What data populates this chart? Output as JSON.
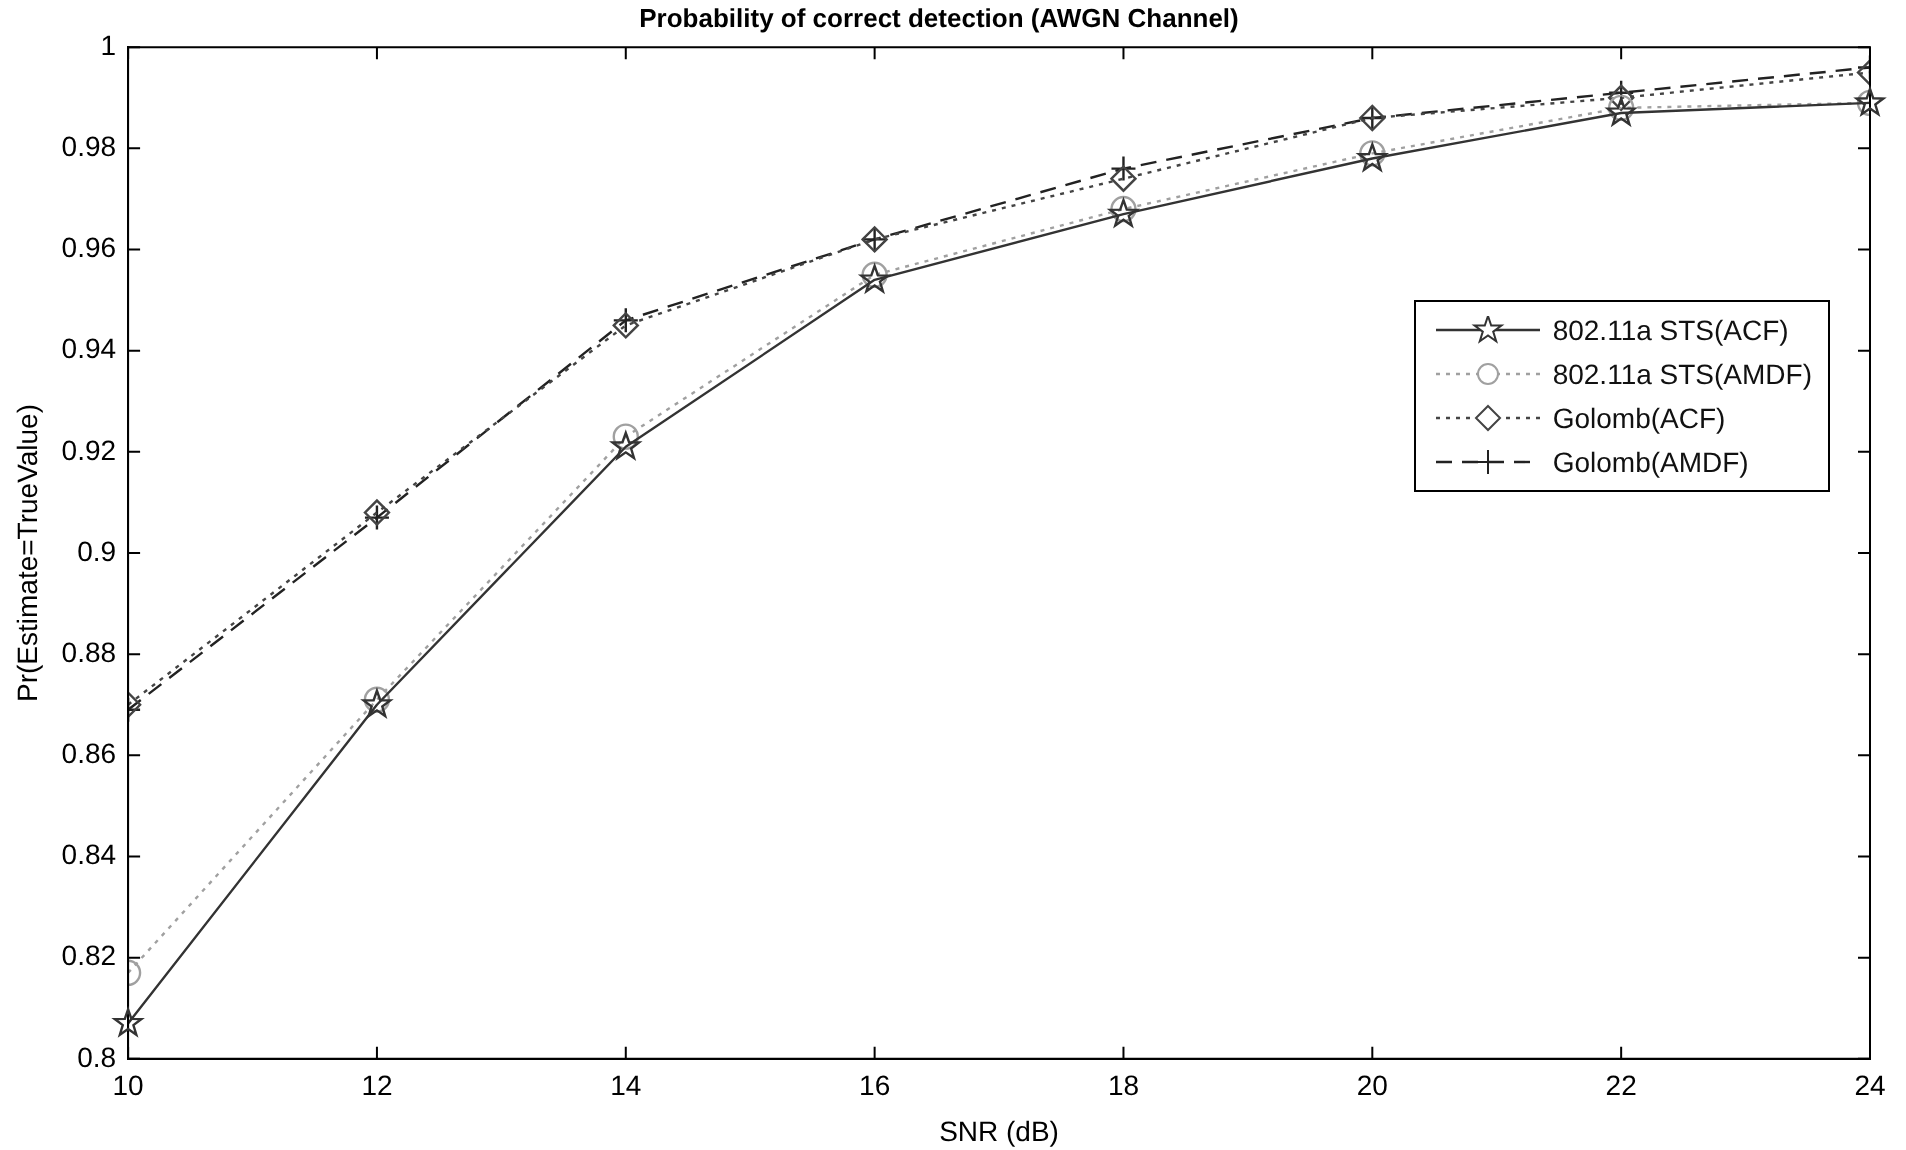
{
  "chart_data": {
    "type": "line",
    "title": "Probability of correct detection (AWGN Channel)",
    "xlabel": "SNR (dB)",
    "ylabel": "Pr(Estimate=TrueValue)",
    "x": [
      10,
      12,
      14,
      16,
      18,
      20,
      22,
      24
    ],
    "xlim": [
      10,
      24
    ],
    "xticks": [
      10,
      12,
      14,
      16,
      18,
      20,
      22,
      24
    ],
    "ylim": [
      0.8,
      1
    ],
    "yticks": [
      0.8,
      0.82,
      0.84,
      0.86,
      0.88,
      0.9,
      0.92,
      0.94,
      0.96,
      0.98,
      1
    ],
    "grid": false,
    "legend": "right",
    "series": [
      {
        "name": "802.11a STS(ACF)",
        "color": "#333333",
        "marker": "star",
        "line_style": "solid",
        "values": [
          0.807,
          0.87,
          0.921,
          0.954,
          0.967,
          0.978,
          0.987,
          0.989
        ]
      },
      {
        "name": "802.11a STS(AMDF)",
        "color": "#a0a0a0",
        "marker": "circle",
        "line_style": "dotted",
        "values": [
          0.817,
          0.871,
          0.923,
          0.955,
          0.968,
          0.979,
          0.988,
          0.989
        ]
      },
      {
        "name": "Golomb(ACF)",
        "color": "#444444",
        "marker": "diamond",
        "line_style": "dotted",
        "values": [
          0.87,
          0.908,
          0.945,
          0.962,
          0.974,
          0.986,
          0.99,
          0.995
        ]
      },
      {
        "name": "Golomb(AMDF)",
        "color": "#222222",
        "marker": "cross",
        "line_style": "dashed",
        "values": [
          0.869,
          0.907,
          0.946,
          0.962,
          0.976,
          0.986,
          0.991,
          0.996
        ]
      }
    ]
  }
}
